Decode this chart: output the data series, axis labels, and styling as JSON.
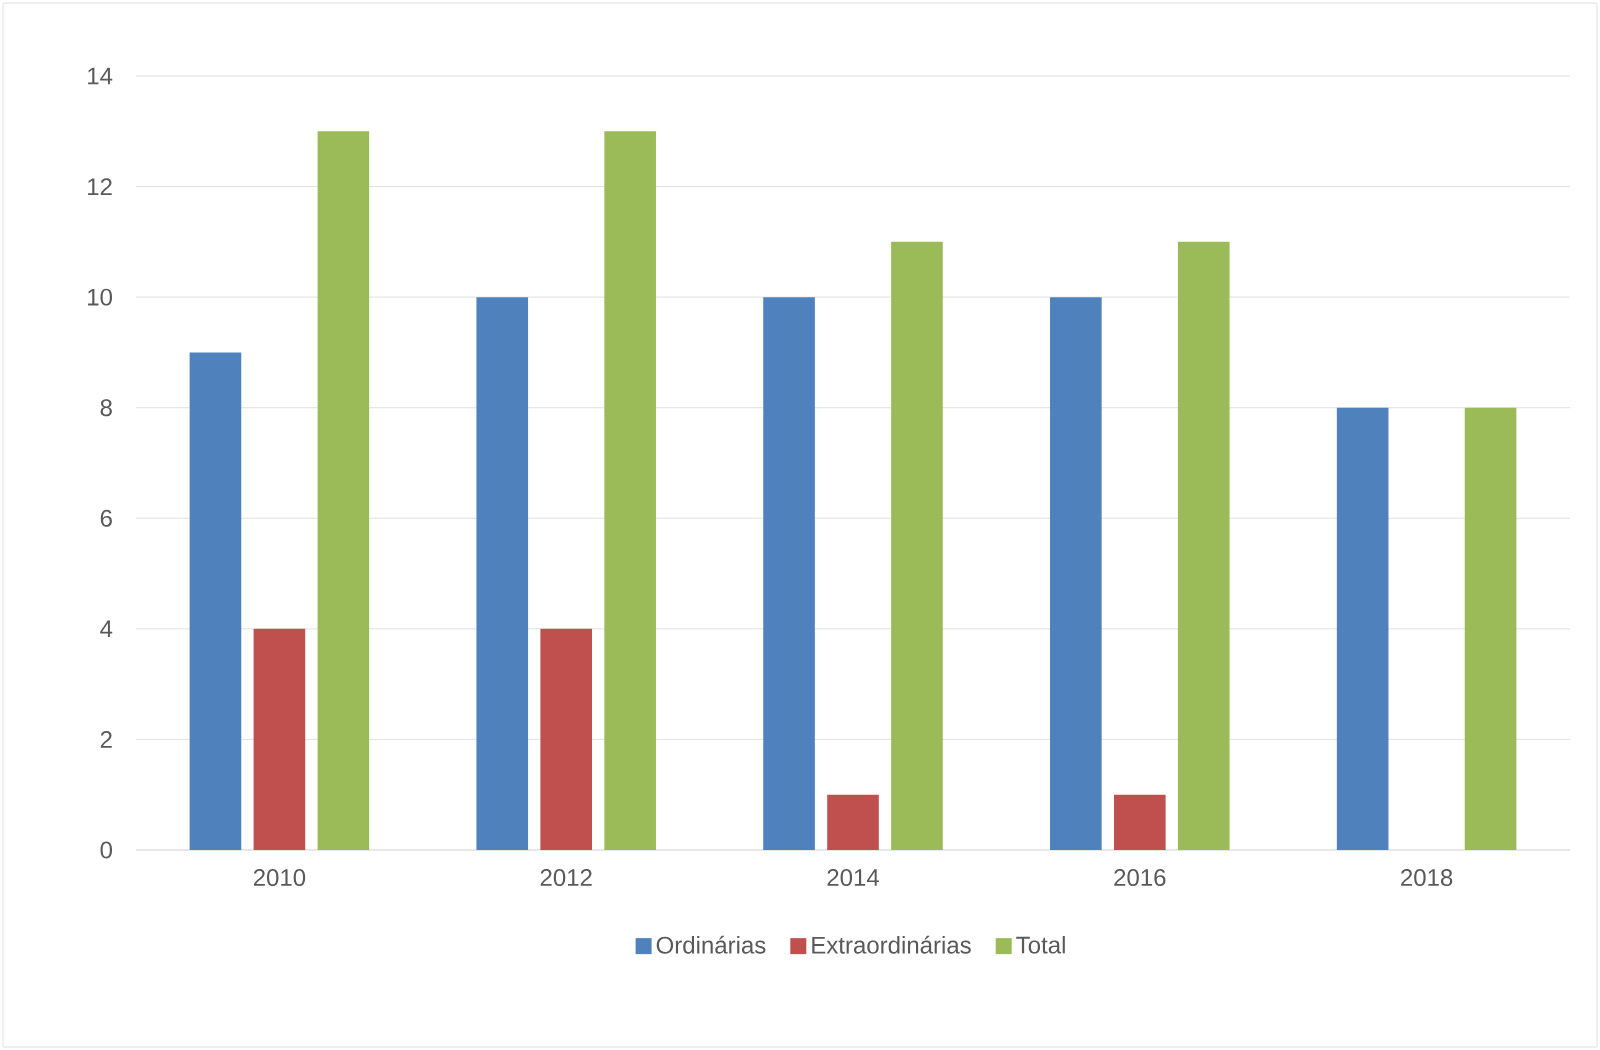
{
  "chart_data": {
    "type": "bar",
    "categories": [
      "2010",
      "2012",
      "2014",
      "2016",
      "2018"
    ],
    "series": [
      {
        "name": "Ordinárias",
        "color": "#4f81bd",
        "values": [
          9,
          10,
          10,
          10,
          8
        ]
      },
      {
        "name": "Extraordinárias",
        "color": "#c0504d",
        "values": [
          4,
          4,
          1,
          1,
          0
        ]
      },
      {
        "name": "Total",
        "color": "#9bbb59",
        "values": [
          13,
          13,
          11,
          11,
          8
        ]
      }
    ],
    "ylim": [
      0,
      14
    ],
    "yticks": [
      0,
      2,
      4,
      6,
      8,
      10,
      12,
      14
    ],
    "grid": "y",
    "legend": "bottom"
  }
}
